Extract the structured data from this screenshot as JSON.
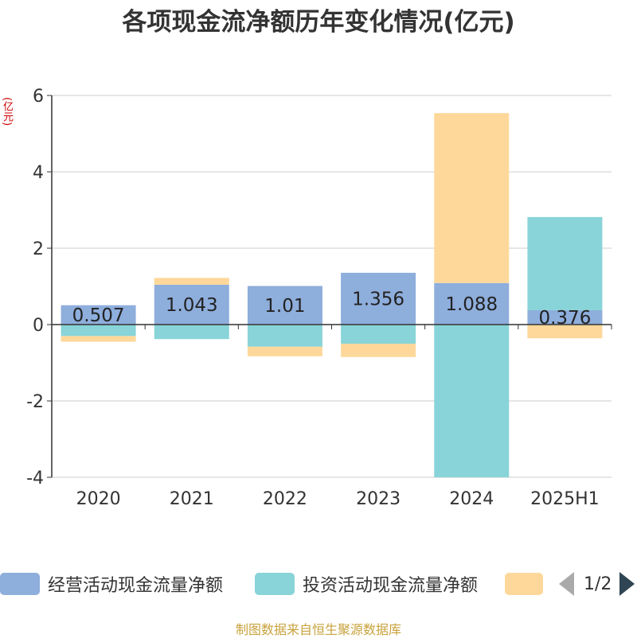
{
  "title": "各项现金流净额历年变化情况(亿元)",
  "y_unit": "(亿元)",
  "source": "制图数据来自恒生聚源数据库",
  "colors": {
    "operating": "#8eaedc",
    "investing": "#88d4d8",
    "financing": "#fed89a"
  },
  "chart_data": {
    "type": "bar",
    "stacked": true,
    "categories": [
      "2020",
      "2021",
      "2022",
      "2023",
      "2024",
      "2025H1"
    ],
    "series": [
      {
        "name": "经营活动现金流量净额",
        "values": [
          0.507,
          1.043,
          1.01,
          1.356,
          1.088,
          0.376
        ],
        "labels": [
          "0.507",
          "1.043",
          "1.01",
          "1.356",
          "1.088",
          "0.376"
        ],
        "color": "#8eaedc"
      },
      {
        "name": "投资活动现金流量净额",
        "values": [
          -0.3,
          -0.38,
          -0.58,
          -0.5,
          -4.0,
          2.44
        ],
        "color": "#88d4d8"
      },
      {
        "name": "",
        "values": [
          -0.15,
          0.18,
          -0.25,
          -0.35,
          4.45,
          -0.36
        ],
        "color": "#fed89a"
      }
    ],
    "ylim": [
      -4,
      6
    ],
    "yticks": [
      -4,
      -2,
      0,
      2,
      4,
      6
    ],
    "grid": true,
    "legend": "bottom"
  },
  "legend": {
    "items": [
      {
        "label": "经营活动现金流量净额",
        "color": "#8eaedc"
      },
      {
        "label": "投资活动现金流量净额",
        "color": "#88d4d8"
      },
      {
        "label": "",
        "color": "#fed89a"
      }
    ],
    "page": "1/2"
  }
}
